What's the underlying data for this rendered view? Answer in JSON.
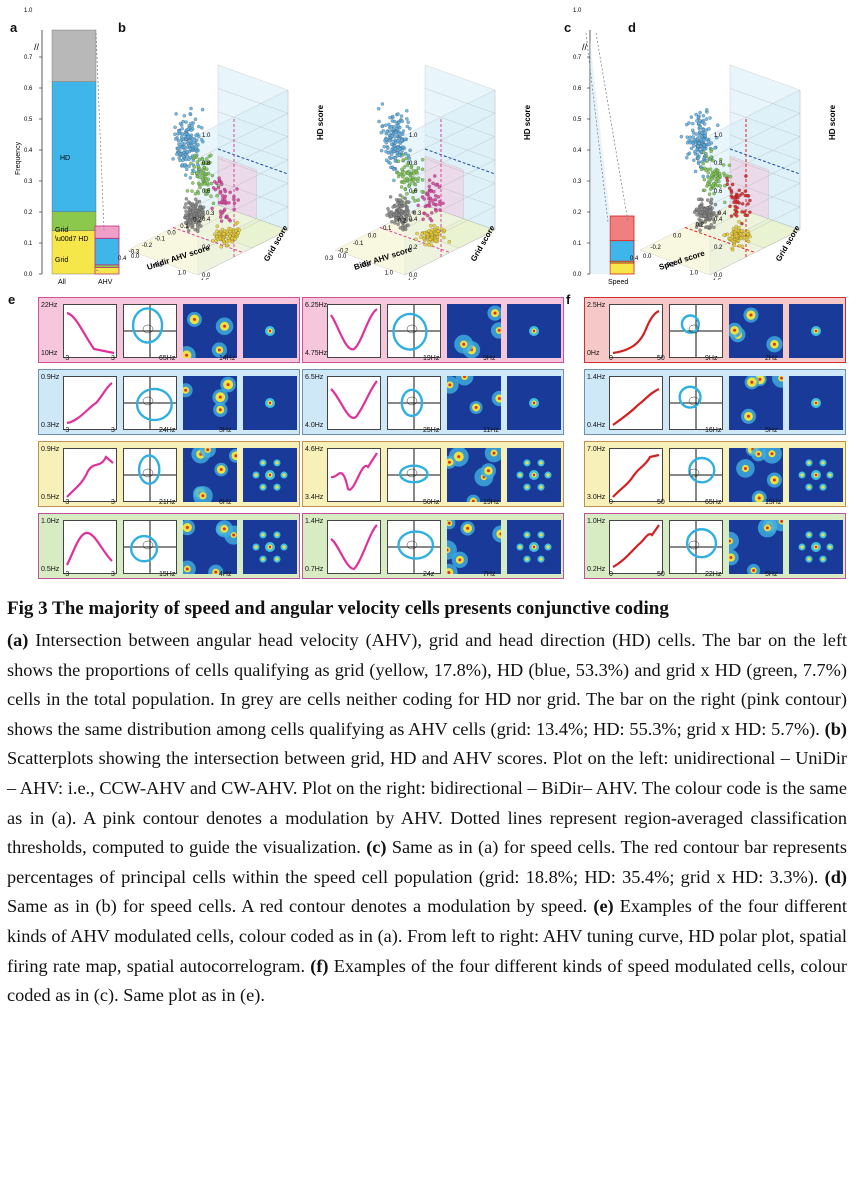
{
  "panels": {
    "a": "a",
    "b": "b",
    "c": "c",
    "d": "d",
    "e": "e",
    "f": "f"
  },
  "bar_a": {
    "y_title": "Frequency",
    "yticks": [
      "1.0",
      "0.7",
      "0.6",
      "0.5",
      "0.4",
      "0.3",
      "0.2",
      "0.1",
      "0.0"
    ],
    "segments": [
      {
        "label": "Grid",
        "value": 0.178,
        "color": "#f5e64a"
      },
      {
        "label": "Grid\n× HD",
        "value": 0.077,
        "color": "#8cc84b"
      },
      {
        "label": "HD",
        "value": 0.533,
        "color": "#3fb6ea"
      },
      {
        "label": "",
        "value": 0.212,
        "color": "#b8b8b8"
      }
    ],
    "x_all": "All",
    "x_ahv": "AHV",
    "ahv_segments": [
      {
        "value": 0.134,
        "color": "#f5e64a"
      },
      {
        "value": 0.057,
        "color": "#8cc84b"
      },
      {
        "value": 0.553,
        "color": "#3fb6ea"
      },
      {
        "value": 0.256,
        "color": "#f0a0c8"
      }
    ]
  },
  "bar_c": {
    "yticks": [
      "1.0",
      "0.7",
      "0.6",
      "0.5",
      "0.4",
      "0.3",
      "0.2",
      "0.1",
      "0.0"
    ],
    "x_speed": "Speed",
    "speed_segments": [
      {
        "value": 0.188,
        "color": "#f5e64a"
      },
      {
        "value": 0.033,
        "color": "#8cc84b"
      },
      {
        "value": 0.354,
        "color": "#3fb6ea"
      },
      {
        "value": 0.425,
        "color": "#f08080"
      }
    ]
  },
  "scatter": [
    {
      "xlabel": "Unidir AHV score",
      "ylabel": "Grid score",
      "zlabel": "HD score",
      "xticks": [
        "-0.4",
        "-0.3",
        "-0.2",
        "-0.1",
        "0.0",
        "0.1",
        "0.2",
        "0.3"
      ],
      "yticks": [
        "0.0",
        "0.5",
        "1.0",
        "1.5"
      ],
      "zticks": [
        "0.0",
        "0.2",
        "0.4",
        "0.6",
        "0.8",
        "1.0"
      ],
      "mod": "#e040a0"
    },
    {
      "xlabel": "Bidir AHV score",
      "ylabel": "Grid score",
      "zlabel": "HD score",
      "xticks": [
        "-0.3",
        "-0.2",
        "-0.1",
        "0.0",
        "0.1",
        "0.2",
        "0.3"
      ],
      "yticks": [
        "0.0",
        "0.5",
        "1.0",
        "1.5"
      ],
      "zticks": [
        "0.0",
        "0.2",
        "0.4",
        "0.6",
        "0.8",
        "1.0"
      ],
      "mod": "#e040a0"
    },
    {
      "xlabel": "Speed score",
      "ylabel": "Grid score",
      "zlabel": "HD score",
      "xticks": [
        "-0.4",
        "-0.2",
        "0.0",
        "0.2",
        "0.4"
      ],
      "yticks": [
        "0.0",
        "0.5",
        "1.0",
        "1.5"
      ],
      "zticks": [
        "0.0",
        "0.2",
        "0.4",
        "0.6",
        "0.8",
        "1.0"
      ],
      "mod": "#e02020"
    }
  ],
  "cells_e_left": [
    {
      "bg": "#f5c6dc",
      "top": "22Hz",
      "bot": "10Hz",
      "xl": "-3",
      "xr": "3",
      "polar": "65Hz",
      "map": "14Hz"
    },
    {
      "bg": "#cfe8f7",
      "top": "0.9Hz",
      "bot": "0.3Hz",
      "xl": "-3",
      "xr": "3",
      "polar": "24Hz",
      "map": "3Hz"
    },
    {
      "bg": "#f7f0b8",
      "top": "0.9Hz",
      "bot": "0.5Hz",
      "xl": "-3",
      "xr": "3",
      "polar": "21Hz",
      "map": "6Hz"
    },
    {
      "bg": "#d8ecc4",
      "top": "1.0Hz",
      "bot": "0.5Hz",
      "xl": "-3",
      "xr": "3",
      "polar": "15Hz",
      "map": "4Hz"
    }
  ],
  "cells_e_right": [
    {
      "bg": "#f5c6dc",
      "top": "6.25Hz",
      "bot": "4.75Hz",
      "polar": "19Hz",
      "map": "9Hz"
    },
    {
      "bg": "#cfe8f7",
      "top": "6.5Hz",
      "bot": "4.0Hz",
      "polar": "25Hz",
      "map": "11Hz"
    },
    {
      "bg": "#f7f0b8",
      "top": "4.6Hz",
      "bot": "3.4Hz",
      "polar": "50Hz",
      "map": "19Hz"
    },
    {
      "bg": "#d8ecc4",
      "top": "1.4Hz",
      "bot": "0.7Hz",
      "polar": "24z",
      "map": "7Hz"
    }
  ],
  "cells_f": [
    {
      "bg": "#f7c8c8",
      "top": "2.5Hz",
      "bot": "0Hz",
      "xl": "0",
      "xr": "50",
      "polar": "9Hz",
      "map": "2Hz"
    },
    {
      "bg": "#cfe8f7",
      "top": "1.4Hz",
      "bot": "0.4Hz",
      "xl": "",
      "xr": "",
      "polar": "16Hz",
      "map": "5Hz"
    },
    {
      "bg": "#f7f0b8",
      "top": "7.0Hz",
      "bot": "3.0Hz",
      "xl": "0",
      "xr": "50",
      "polar": "65Hz",
      "map": "15Hz"
    },
    {
      "bg": "#d8ecc4",
      "top": "1.0Hz",
      "bot": "0.2Hz",
      "xl": "0",
      "xr": "50",
      "polar": "22Hz",
      "map": "5Hz"
    }
  ],
  "caption": {
    "title": "Fig 3 The majority of speed and angular velocity cells presents conjunctive coding",
    "a_tag": "(a)",
    "a_text": " Intersection between angular head velocity (AHV), grid and head direction (HD) cells. The bar on the left shows the proportions of cells qualifying as grid (yellow, 17.8%), HD (blue, 53.3%) and grid x HD (green, 7.7%) cells in the total population. In grey are cells neither coding for HD nor grid. The bar on the right (pink contour) shows the same distribution among cells qualifying as AHV cells (grid: 13.4%; HD: 55.3%; grid x HD: 5.7%). ",
    "b_tag": "(b)",
    "b_text": " Scatterplots showing the intersection between grid, HD and AHV scores. Plot on the left: unidirectional – UniDir – AHV: i.e., CCW-AHV and CW-AHV. Plot on the right: bidirectional – BiDir– AHV. The colour code is the same as in (a). A pink contour denotes a modulation by AHV. Dotted lines represent region-averaged classification thresholds, computed to guide the visualization. ",
    "c_tag": "(c)",
    "c_text": " Same as in (a) for speed cells. The red contour bar represents percentages of principal cells within the speed cell population (grid: 18.8%; HD: 35.4%; grid x HD: 3.3%). ",
    "d_tag": "(d)",
    "d_text": " Same as in (b) for speed cells. A red contour denotes a modulation by speed. ",
    "e_tag": "(e)",
    "e_text": " Examples of the four different kinds of AHV modulated cells, colour coded as in (a). From left to right: AHV tuning curve, HD polar plot, spatial firing rate map, spatial autocorrelogram. ",
    "f_tag": "(f)",
    "f_text": " Examples of the four different kinds of speed modulated cells, colour coded as in (c). Same plot as in (e)."
  }
}
